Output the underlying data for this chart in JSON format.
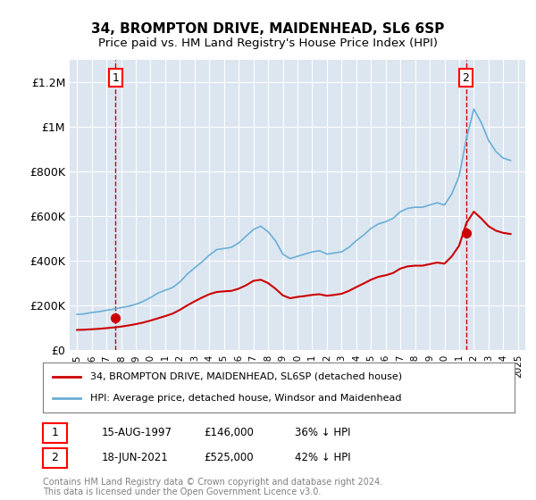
{
  "title1": "34, BROMPTON DRIVE, MAIDENHEAD, SL6 6SP",
  "title2": "Price paid vs. HM Land Registry's House Price Index (HPI)",
  "ylabel_ticks": [
    "£0",
    "£200K",
    "£400K",
    "£600K",
    "£800K",
    "£1M",
    "£1.2M"
  ],
  "ytick_values": [
    0,
    200000,
    400000,
    600000,
    800000,
    1000000,
    1200000
  ],
  "ylim": [
    0,
    1300000
  ],
  "xlim_start": 1994.5,
  "xlim_end": 2025.5,
  "background_color": "#dce6f1",
  "plot_bg_color": "#dce6f1",
  "hpi_color": "#6baed6",
  "price_color": "#cc0000",
  "vline1_color": "#cc0000",
  "vline2_color": "#cc0000",
  "vline1_x": 1997.617,
  "vline2_x": 2021.46,
  "marker1_x": 1997.617,
  "marker1_y": 146000,
  "marker2_x": 2021.46,
  "marker2_y": 525000,
  "annotation1_label": "1",
  "annotation2_label": "2",
  "legend_line1": "34, BROMPTON DRIVE, MAIDENHEAD, SL6SP (detached house)",
  "legend_line2": "HPI: Average price, detached house, Windsor and Maidenhead",
  "table_row1": [
    "1",
    "15-AUG-1997",
    "£146,000",
    "36% ↓ HPI"
  ],
  "table_row2": [
    "2",
    "18-JUN-2021",
    "£525,000",
    "42% ↓ HPI"
  ],
  "footer": "Contains HM Land Registry data © Crown copyright and database right 2024.\nThis data is licensed under the Open Government Licence v3.0.",
  "hpi_years": [
    1995,
    1995.5,
    1996,
    1996.5,
    1997,
    1997.5,
    1998,
    1998.5,
    1999,
    1999.5,
    2000,
    2000.5,
    2001,
    2001.5,
    2002,
    2002.5,
    2003,
    2003.5,
    2004,
    2004.5,
    2005,
    2005.5,
    2006,
    2006.5,
    2007,
    2007.5,
    2008,
    2008.5,
    2009,
    2009.5,
    2010,
    2010.5,
    2011,
    2011.5,
    2012,
    2012.5,
    2013,
    2013.5,
    2014,
    2014.5,
    2015,
    2015.5,
    2016,
    2016.5,
    2017,
    2017.5,
    2018,
    2018.5,
    2019,
    2019.5,
    2020,
    2020.5,
    2021,
    2021.5,
    2022,
    2022.5,
    2023,
    2023.5,
    2024,
    2024.5
  ],
  "hpi_values": [
    160000,
    162000,
    168000,
    172000,
    178000,
    183000,
    190000,
    196000,
    205000,
    218000,
    235000,
    255000,
    268000,
    280000,
    305000,
    340000,
    368000,
    395000,
    425000,
    450000,
    455000,
    460000,
    480000,
    510000,
    540000,
    555000,
    530000,
    490000,
    430000,
    410000,
    420000,
    430000,
    440000,
    445000,
    430000,
    435000,
    440000,
    460000,
    490000,
    515000,
    545000,
    565000,
    575000,
    590000,
    620000,
    635000,
    640000,
    640000,
    650000,
    660000,
    650000,
    700000,
    780000,
    950000,
    1080000,
    1020000,
    940000,
    890000,
    860000,
    850000
  ],
  "price_years": [
    1995,
    1995.5,
    1996,
    1996.5,
    1997,
    1997.5,
    1998,
    1998.5,
    1999,
    1999.5,
    2000,
    2000.5,
    2001,
    2001.5,
    2002,
    2002.5,
    2003,
    2003.5,
    2004,
    2004.5,
    2005,
    2005.5,
    2006,
    2006.5,
    2007,
    2007.5,
    2008,
    2008.5,
    2009,
    2009.5,
    2010,
    2010.5,
    2011,
    2011.5,
    2012,
    2012.5,
    2013,
    2013.5,
    2014,
    2014.5,
    2015,
    2015.5,
    2016,
    2016.5,
    2017,
    2017.5,
    2018,
    2018.5,
    2019,
    2019.5,
    2020,
    2020.5,
    2021,
    2021.5,
    2022,
    2022.5,
    2023,
    2023.5,
    2024,
    2024.5
  ],
  "price_values": [
    90000,
    91000,
    93000,
    95000,
    98000,
    101000,
    105000,
    110000,
    116000,
    123000,
    132000,
    142000,
    152000,
    163000,
    180000,
    200000,
    218000,
    235000,
    250000,
    260000,
    263000,
    265000,
    275000,
    290000,
    310000,
    315000,
    300000,
    275000,
    245000,
    232000,
    238000,
    242000,
    247000,
    250000,
    243000,
    247000,
    252000,
    265000,
    282000,
    298000,
    315000,
    328000,
    335000,
    345000,
    365000,
    375000,
    378000,
    378000,
    385000,
    392000,
    387000,
    420000,
    468000,
    570000,
    620000,
    590000,
    555000,
    535000,
    525000,
    520000
  ]
}
